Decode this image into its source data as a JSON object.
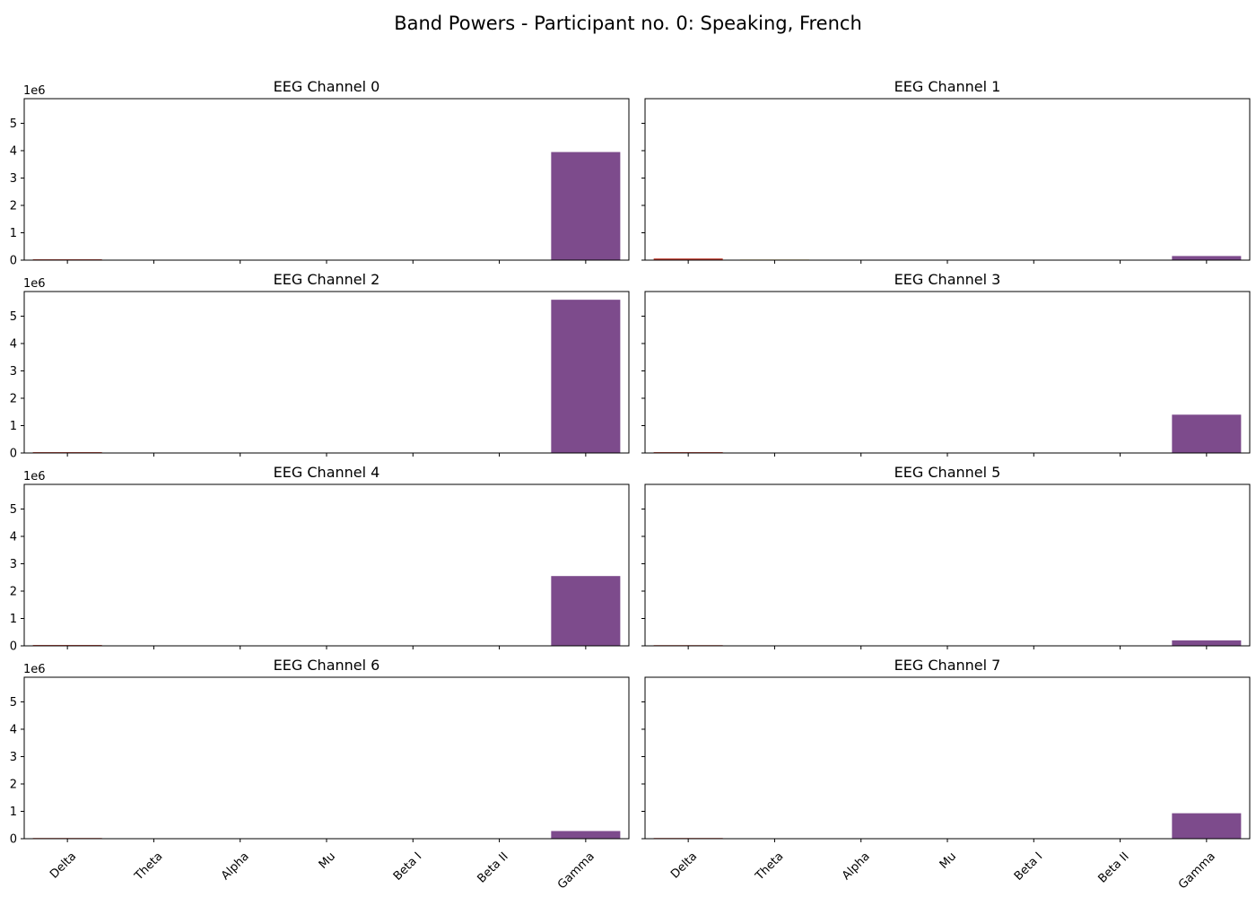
{
  "figure": {
    "title": "Band Powers - Participant no. 0: Speaking, French"
  },
  "chart_data": {
    "type": "bar",
    "layout": "4x2 grid of subplots, shared y-axis, x tick labels on bottom row only",
    "categories": [
      "Delta",
      "Theta",
      "Alpha",
      "Mu",
      "Beta I",
      "Beta II",
      "Gamma"
    ],
    "bar_colors": [
      "#c0392b",
      "#d4ac0d",
      "#2e86c1",
      "#28b463",
      "#e67e22",
      "#17a589",
      "#7d4b8c"
    ],
    "ylim": [
      0,
      5900000
    ],
    "y_ticks": [
      0,
      1,
      2,
      3,
      4,
      5
    ],
    "y_tick_labels": [
      "0",
      "1",
      "2",
      "3",
      "4",
      "5"
    ],
    "y_scale_label": "1e6",
    "grid": false,
    "panels": [
      {
        "title": "EEG Channel 0",
        "values": [
          30000,
          15000,
          0,
          0,
          0,
          0,
          3950000
        ]
      },
      {
        "title": "EEG Channel 1",
        "values": [
          60000,
          20000,
          0,
          0,
          0,
          0,
          150000
        ]
      },
      {
        "title": "EEG Channel 2",
        "values": [
          30000,
          5000,
          0,
          0,
          0,
          0,
          5600000
        ]
      },
      {
        "title": "EEG Channel 3",
        "values": [
          30000,
          5000,
          0,
          0,
          0,
          0,
          1400000
        ]
      },
      {
        "title": "EEG Channel 4",
        "values": [
          30000,
          5000,
          0,
          0,
          0,
          0,
          2550000
        ]
      },
      {
        "title": "EEG Channel 5",
        "values": [
          25000,
          5000,
          0,
          0,
          0,
          0,
          200000
        ]
      },
      {
        "title": "EEG Channel 6",
        "values": [
          25000,
          5000,
          0,
          0,
          0,
          0,
          280000
        ]
      },
      {
        "title": "EEG Channel 7",
        "values": [
          25000,
          5000,
          0,
          0,
          0,
          0,
          930000
        ]
      }
    ]
  }
}
